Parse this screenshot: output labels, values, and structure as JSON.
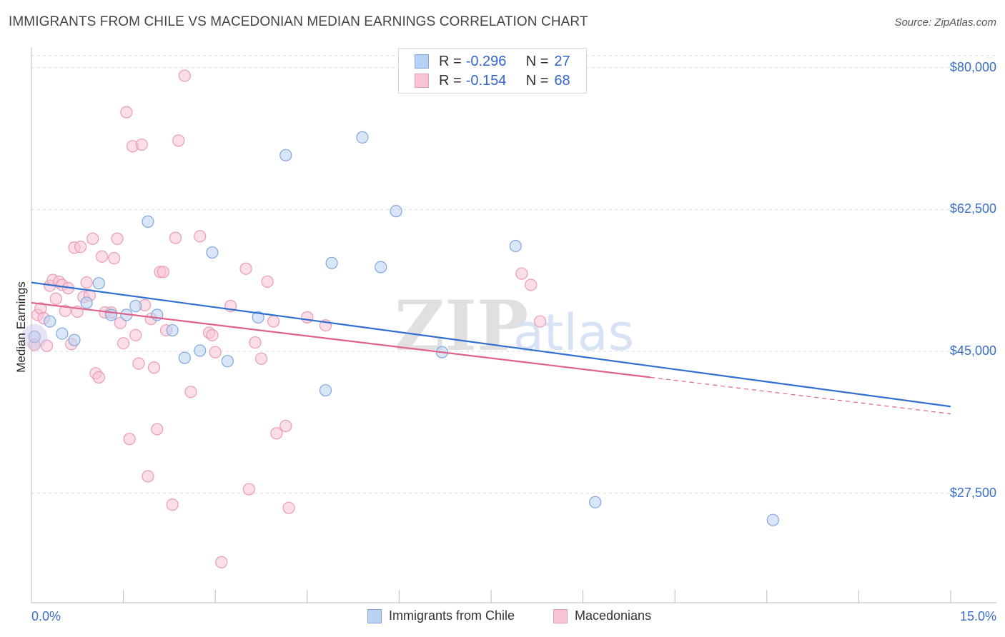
{
  "title": "IMMIGRANTS FROM CHILE VS MACEDONIAN MEDIAN EARNINGS CORRELATION CHART",
  "source": "Source: ZipAtlas.com",
  "watermark": {
    "zip": "ZIP",
    "atlas": "atlas"
  },
  "legend": {
    "r_label": "R =",
    "n_label": "N =",
    "rows": [
      {
        "r": "-0.296",
        "n": "27",
        "fill": "#b9d1f2",
        "stroke": "#7fa6de"
      },
      {
        "r": "-0.154",
        "n": "68",
        "fill": "#f8c3d4",
        "stroke": "#eb9ab5"
      }
    ]
  },
  "bottom_legend": [
    {
      "label": "Immigrants from Chile",
      "fill": "#b9d1f2",
      "stroke": "#7fa6de"
    },
    {
      "label": "Macedonians",
      "fill": "#f8c3d4",
      "stroke": "#eb9ab5"
    }
  ],
  "chart_data": {
    "type": "scatter",
    "title": "IMMIGRANTS FROM CHILE VS MACEDONIAN MEDIAN EARNINGS CORRELATION CHART",
    "xlabel": "",
    "ylabel": "Median Earnings",
    "xlim": [
      0,
      15
    ],
    "ylim": [
      14000,
      82000
    ],
    "x_tick_labels": {
      "left": "0.0%",
      "right": "15.0%"
    },
    "y_ticks": [
      {
        "value": 80000,
        "label": "$80,000"
      },
      {
        "value": 62500,
        "label": "$62,500"
      },
      {
        "value": 45000,
        "label": "$45,000"
      },
      {
        "value": 27500,
        "label": "$27,500"
      }
    ],
    "grid": "horizontal dashed",
    "series": [
      {
        "name": "Immigrants from Chile",
        "color": "#7fa6de",
        "fill": "#b9d1f2",
        "trend": {
          "x0": 0,
          "y0": 53500,
          "x1": 15,
          "y1": 38200,
          "style": "solid",
          "color": "#2f6fd1"
        },
        "points": [
          [
            0.05,
            46800
          ],
          [
            0.3,
            48700
          ],
          [
            0.5,
            47200
          ],
          [
            0.7,
            46400
          ],
          [
            0.9,
            51000
          ],
          [
            1.1,
            53400
          ],
          [
            1.3,
            49500
          ],
          [
            1.55,
            49500
          ],
          [
            1.7,
            50600
          ],
          [
            1.9,
            61000
          ],
          [
            2.05,
            49500
          ],
          [
            2.3,
            47600
          ],
          [
            2.5,
            44200
          ],
          [
            2.75,
            45100
          ],
          [
            2.95,
            57200
          ],
          [
            3.2,
            43800
          ],
          [
            3.7,
            49200
          ],
          [
            4.15,
            69200
          ],
          [
            4.8,
            40200
          ],
          [
            4.9,
            55900
          ],
          [
            5.4,
            71400
          ],
          [
            5.7,
            55400
          ],
          [
            5.95,
            62300
          ],
          [
            6.7,
            44900
          ],
          [
            7.9,
            58000
          ],
          [
            9.2,
            26400
          ],
          [
            12.1,
            24200
          ]
        ]
      },
      {
        "name": "Macedonians",
        "color": "#eb9ab5",
        "fill": "#f8c3d4",
        "trend": {
          "x0": 0,
          "y0": 51000,
          "x1": 10.1,
          "y1": 41800,
          "x_dash_end": 15,
          "y_dash_end": 37300,
          "style": "solid-then-dashed",
          "color": "#e0608c"
        },
        "points": [
          [
            0.05,
            45800
          ],
          [
            0.1,
            49500
          ],
          [
            0.15,
            50300
          ],
          [
            0.2,
            49100
          ],
          [
            0.3,
            53100
          ],
          [
            0.35,
            53800
          ],
          [
            0.4,
            51500
          ],
          [
            0.45,
            53600
          ],
          [
            0.5,
            53200
          ],
          [
            0.6,
            52800
          ],
          [
            0.65,
            45900
          ],
          [
            0.7,
            57800
          ],
          [
            0.75,
            49900
          ],
          [
            0.8,
            57900
          ],
          [
            0.85,
            51700
          ],
          [
            0.9,
            53500
          ],
          [
            0.95,
            51900
          ],
          [
            1.0,
            58900
          ],
          [
            1.05,
            42300
          ],
          [
            1.1,
            41800
          ],
          [
            1.15,
            56700
          ],
          [
            1.2,
            49800
          ],
          [
            1.3,
            49800
          ],
          [
            1.35,
            56500
          ],
          [
            1.4,
            58900
          ],
          [
            1.45,
            48500
          ],
          [
            1.5,
            46000
          ],
          [
            1.55,
            74500
          ],
          [
            1.6,
            34200
          ],
          [
            1.65,
            70300
          ],
          [
            1.7,
            47000
          ],
          [
            1.75,
            43500
          ],
          [
            1.8,
            70500
          ],
          [
            1.85,
            50700
          ],
          [
            1.9,
            29600
          ],
          [
            1.95,
            49000
          ],
          [
            2.0,
            43000
          ],
          [
            2.05,
            35400
          ],
          [
            2.1,
            54800
          ],
          [
            2.15,
            54800
          ],
          [
            2.2,
            47600
          ],
          [
            2.3,
            26100
          ],
          [
            2.35,
            59000
          ],
          [
            2.4,
            71000
          ],
          [
            2.5,
            79000
          ],
          [
            2.6,
            40000
          ],
          [
            2.75,
            59200
          ],
          [
            2.9,
            47300
          ],
          [
            2.95,
            47000
          ],
          [
            3.0,
            44900
          ],
          [
            3.1,
            19000
          ],
          [
            3.25,
            50600
          ],
          [
            3.5,
            55200
          ],
          [
            3.55,
            28000
          ],
          [
            3.65,
            46100
          ],
          [
            3.75,
            44100
          ],
          [
            3.85,
            53600
          ],
          [
            3.95,
            48700
          ],
          [
            4.0,
            34900
          ],
          [
            4.15,
            35800
          ],
          [
            4.2,
            25700
          ],
          [
            4.5,
            49200
          ],
          [
            4.8,
            48200
          ],
          [
            8.0,
            54600
          ],
          [
            8.15,
            53200
          ],
          [
            8.3,
            48700
          ],
          [
            0.25,
            45700
          ],
          [
            0.55,
            50000
          ]
        ]
      }
    ]
  }
}
